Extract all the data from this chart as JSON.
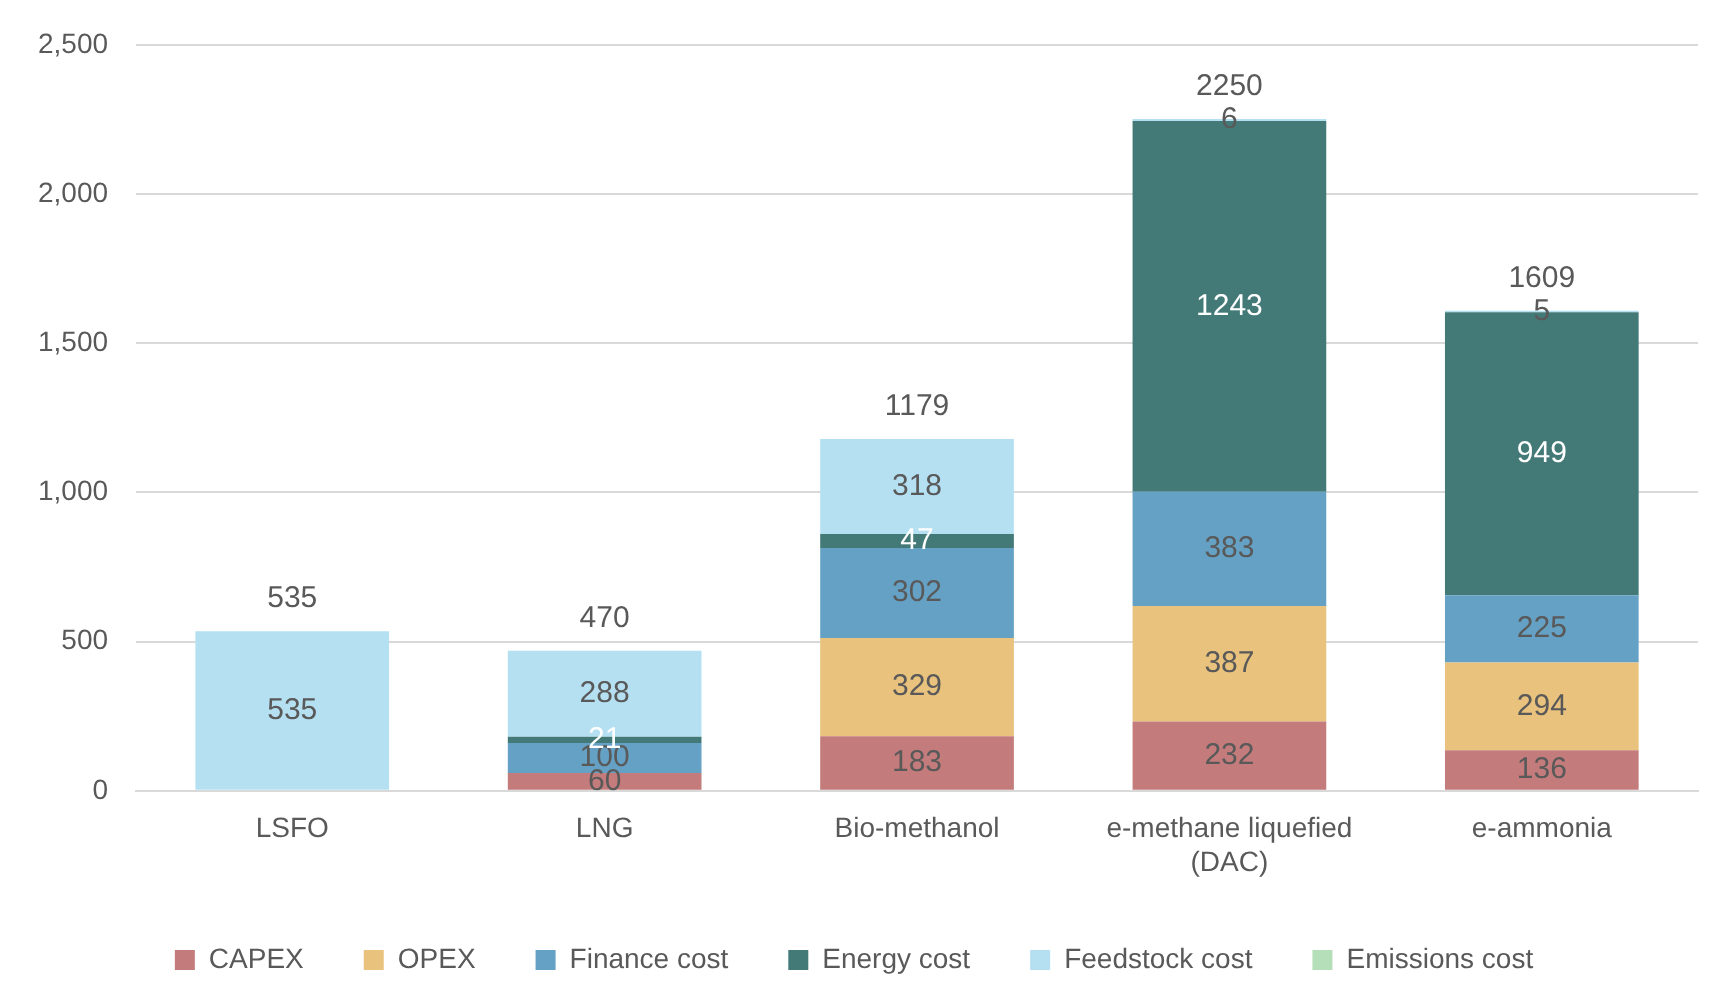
{
  "chart_data": {
    "type": "bar",
    "stacked": true,
    "categories": [
      "LSFO",
      "LNG",
      "Bio-methanol",
      "e-methane liquefied (DAC)",
      "e-ammonia"
    ],
    "series": [
      {
        "name": "CAPEX",
        "color": "#c47b7b",
        "values": [
          null,
          60,
          183,
          232,
          136
        ]
      },
      {
        "name": "OPEX",
        "color": "#e9c27d",
        "values": [
          null,
          null,
          329,
          387,
          294
        ]
      },
      {
        "name": "Finance cost",
        "color": "#65a1c4",
        "values": [
          null,
          100,
          302,
          383,
          225
        ]
      },
      {
        "name": "Energy cost",
        "color": "#437a78",
        "values": [
          null,
          21,
          47,
          1243,
          949
        ]
      },
      {
        "name": "Feedstock cost",
        "color": "#b4e0f2",
        "values": [
          535,
          288,
          318,
          6,
          5
        ]
      },
      {
        "name": "Emissions cost",
        "color": "#b5dfb9",
        "values": [
          null,
          null,
          null,
          null,
          null
        ]
      }
    ],
    "data_labels": true,
    "totals": [
      "535",
      "470",
      "1179",
      "2250",
      "1609"
    ],
    "ylim": [
      0,
      2500
    ],
    "yticks": [
      0,
      {
        "value": 500,
        "label": "500"
      },
      {
        "value": 1000,
        "label": "1,000"
      },
      {
        "value": 1500,
        "label": "1,500"
      },
      {
        "value": 2000,
        "label": "2,000"
      },
      {
        "value": 2500,
        "label": "2,500"
      }
    ],
    "grid": "y",
    "legend": "bottom"
  }
}
